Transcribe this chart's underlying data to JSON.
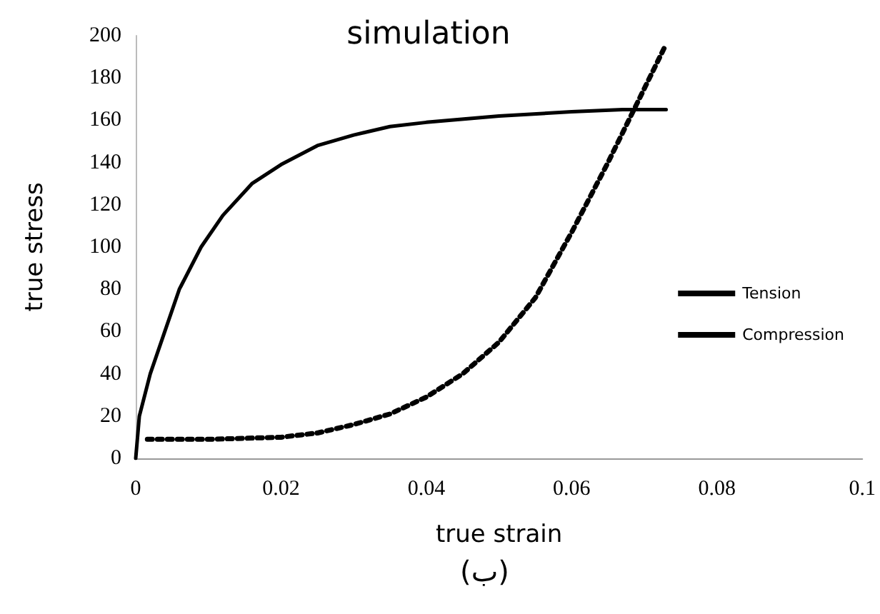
{
  "chart_data": {
    "type": "line",
    "title": "simulation",
    "xlabel": "true strain",
    "ylabel": "true stress",
    "annotations": [
      "(ب)"
    ],
    "xlim": [
      0,
      0.1
    ],
    "xticks": [
      0,
      0.02,
      0.04,
      0.06,
      0.08,
      0.1
    ],
    "ylim": [
      0,
      200
    ],
    "yticks": [
      0,
      20,
      40,
      60,
      80,
      100,
      120,
      140,
      160,
      180,
      200
    ],
    "grid": false,
    "legend": "right",
    "marker": "none",
    "series": [
      {
        "name": "Tension",
        "color": "#000000",
        "line_style": "solid",
        "x": [
          0,
          0.0005,
          0.002,
          0.004,
          0.006,
          0.009,
          0.012,
          0.016,
          0.02,
          0.025,
          0.03,
          0.035,
          0.04,
          0.05,
          0.06,
          0.067,
          0.073
        ],
        "values": [
          0,
          20,
          40,
          60,
          80,
          100,
          115,
          130,
          139,
          148,
          153,
          157,
          159,
          162,
          164,
          165,
          165
        ]
      },
      {
        "name": "Compression",
        "color": "#000000",
        "line_style": "dotted",
        "x": [
          0.0016,
          0.01,
          0.02,
          0.025,
          0.03,
          0.035,
          0.04,
          0.045,
          0.05,
          0.055,
          0.06,
          0.065,
          0.07,
          0.073
        ],
        "values": [
          9,
          9,
          10,
          12,
          16,
          21,
          29,
          40,
          55,
          76,
          107,
          140,
          175,
          196
        ]
      }
    ]
  }
}
